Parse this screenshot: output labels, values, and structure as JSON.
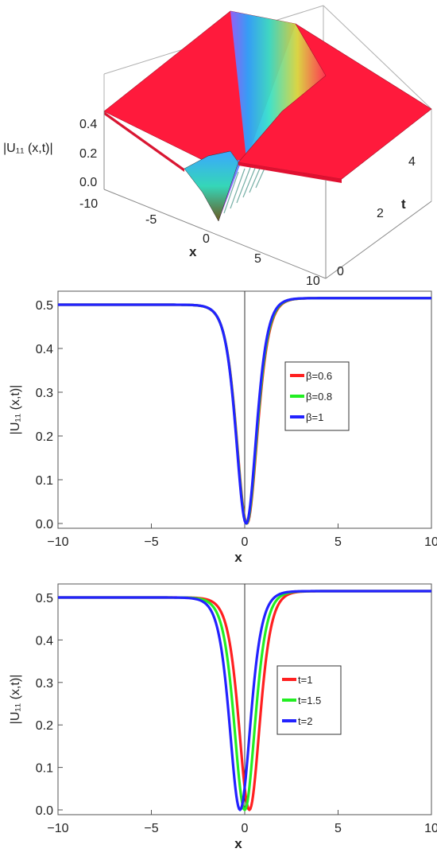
{
  "chart_data": [
    {
      "type": "surface3d",
      "zlabel": "|U₁₁ (x,t)|",
      "xlabel": "x",
      "ylabel": "t",
      "xlim": [
        -10,
        10
      ],
      "tlim": [
        0,
        5
      ],
      "zlim": [
        0,
        0.5
      ],
      "x_ticks": [
        "-10",
        "-5",
        "0",
        "5",
        "10"
      ],
      "t_ticks": [
        "0",
        "2",
        "4"
      ],
      "z_ticks": [
        "0.0",
        "0.2",
        "0.4"
      ],
      "colors": {
        "plateau": "#ff1a3c",
        "dip_gradient": [
          "#ff2d6f",
          "#c83cff",
          "#2ba4ff",
          "#36e0c8",
          "#d9d23a",
          "#6b5a1e"
        ]
      }
    },
    {
      "type": "line",
      "xlabel": "x",
      "ylabel": "|U₁₁ (x,t)|",
      "xlim": [
        -10,
        10
      ],
      "ylim": [
        0,
        0.5
      ],
      "x_ticks": [
        "-10",
        "-5",
        "0",
        "5",
        "10"
      ],
      "y_ticks": [
        "0.0",
        "0.1",
        "0.2",
        "0.3",
        "0.4",
        "0.5"
      ],
      "legend_position": "right",
      "series": [
        {
          "name": "β=0.6",
          "color": "#ff2020",
          "center": 0.12,
          "left": 0.5,
          "right": 0.515,
          "width": 0.75
        },
        {
          "name": "β=0.8",
          "color": "#22ee22",
          "center": 0.1,
          "left": 0.5,
          "right": 0.515,
          "width": 0.74
        },
        {
          "name": "β=1",
          "color": "#2222ff",
          "center": 0.08,
          "left": 0.5,
          "right": 0.515,
          "width": 0.73
        }
      ]
    },
    {
      "type": "line",
      "xlabel": "x",
      "ylabel": "|U₁₁ (x,t)|",
      "xlim": [
        -10,
        10
      ],
      "ylim": [
        0,
        0.5
      ],
      "x_ticks": [
        "-10",
        "-5",
        "0",
        "5",
        "10"
      ],
      "y_ticks": [
        "0.0",
        "0.1",
        "0.2",
        "0.3",
        "0.4",
        "0.5"
      ],
      "legend_position": "right",
      "series": [
        {
          "name": "t=1",
          "color": "#ff2020",
          "center": 0.25,
          "left": 0.5,
          "right": 0.515,
          "width": 0.75
        },
        {
          "name": "t=1.5",
          "color": "#22ee22",
          "center": 0.0,
          "left": 0.5,
          "right": 0.515,
          "width": 0.75
        },
        {
          "name": "t=2",
          "color": "#2222ff",
          "center": -0.25,
          "left": 0.5,
          "right": 0.515,
          "width": 0.75
        }
      ]
    }
  ]
}
